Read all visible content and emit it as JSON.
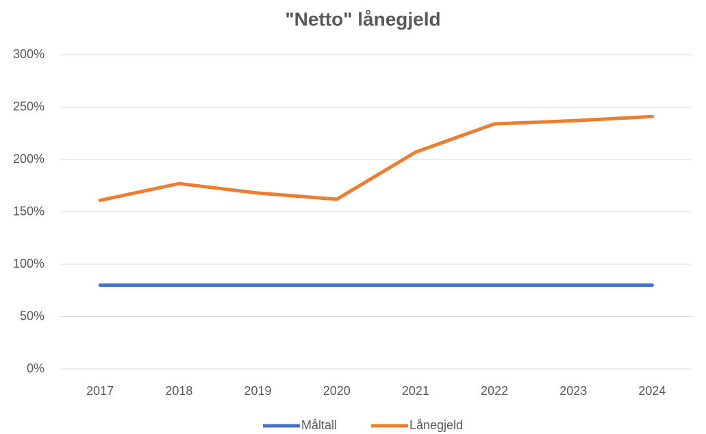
{
  "chart_data": {
    "type": "line",
    "title": "\"Netto\" lånegjeld",
    "categories": [
      "2017",
      "2018",
      "2019",
      "2020",
      "2021",
      "2022",
      "2023",
      "2024"
    ],
    "series": [
      {
        "name": "Måltall",
        "color": "#4472c4",
        "values": [
          80,
          80,
          80,
          80,
          80,
          80,
          80,
          80
        ]
      },
      {
        "name": "Lånegjeld",
        "color": "#ed7d31",
        "values": [
          161,
          177,
          168,
          162,
          207,
          234,
          237,
          241
        ]
      }
    ],
    "ylim": [
      0,
      300
    ],
    "yticks": [
      {
        "value": 0,
        "label": "0%"
      },
      {
        "value": 50,
        "label": "50%"
      },
      {
        "value": 100,
        "label": "100%"
      },
      {
        "value": 150,
        "label": "150%"
      },
      {
        "value": 200,
        "label": "200%"
      },
      {
        "value": 250,
        "label": "250%"
      },
      {
        "value": 300,
        "label": "300%"
      }
    ],
    "grid": true,
    "legend": "bottom"
  }
}
